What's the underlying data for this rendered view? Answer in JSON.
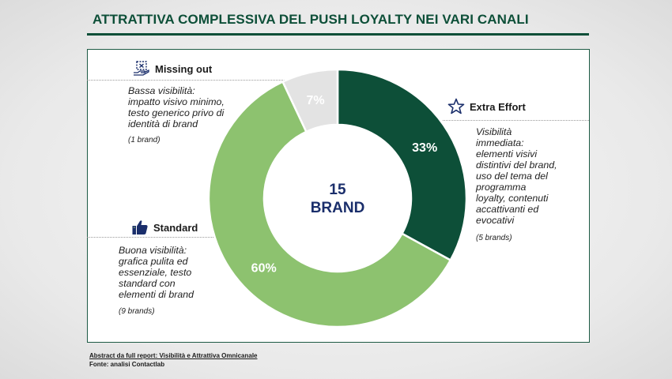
{
  "title": "ATTRATTIVA COMPLESSIVA DEL PUSH LOYALTY NEI VARI CANALI",
  "center": {
    "line1": "15",
    "line2": "BRAND"
  },
  "categories": {
    "missing": {
      "name": "Missing out",
      "desc_lines": [
        "Bassa visibilità:",
        "impatto visivo minimo,",
        "testo generico privo di",
        "identità di brand"
      ],
      "count": "(1 brand)",
      "icon": "empty-box-hand-icon"
    },
    "extra": {
      "name": "Extra Effort",
      "desc_lines": [
        "Visibilità",
        "immediata:",
        "elementi visivi",
        "distintivi del brand,",
        "uso del tema del",
        "programma",
        "loyalty, contenuti",
        "accattivanti ed",
        "evocativi"
      ],
      "count": "(5 brands)",
      "icon": "star-outline-icon"
    },
    "standard": {
      "name": "Standard",
      "desc_lines": [
        "Buona visibilità:",
        "grafica pulita ed",
        "essenziale, testo",
        "standard con",
        "elementi di brand"
      ],
      "count": "(9 brands)",
      "icon": "thumbs-up-icon"
    }
  },
  "colors": {
    "extra": "#0d4f38",
    "standard": "#8dc26f",
    "missing": "#e3e3e3",
    "accent": "#0d4f38",
    "center_text": "#1a2e6b"
  },
  "chart_data": {
    "type": "pie",
    "subtype": "donut",
    "categories": [
      "Extra Effort",
      "Standard",
      "Missing out"
    ],
    "values": [
      33,
      60,
      7
    ],
    "value_labels": [
      "33%",
      "60%",
      "7%"
    ]
  },
  "footer": {
    "line1": "Abstract da full report: Visibilità e Attrattiva Omnicanale",
    "line2": "Fonte: analisi Contactlab"
  }
}
